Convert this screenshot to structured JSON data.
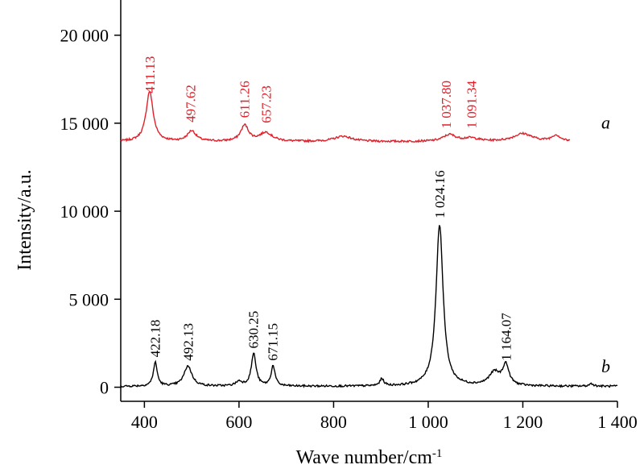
{
  "chart_data": {
    "type": "line",
    "title": "",
    "xlabel_main": "Wave number/cm",
    "xlabel_sup": "-1",
    "ylabel": "Intensity/a.u.",
    "xlim": [
      350,
      1400
    ],
    "ylim": [
      -800,
      22000
    ],
    "x_ticks": [
      {
        "value": 400,
        "label": "400"
      },
      {
        "value": 600,
        "label": "600"
      },
      {
        "value": 800,
        "label": "800"
      },
      {
        "value": 1000,
        "label": "1 000"
      },
      {
        "value": 1200,
        "label": "1 200"
      },
      {
        "value": 1400,
        "label": "1 400"
      }
    ],
    "y_ticks": [
      {
        "value": 0,
        "label": "0"
      },
      {
        "value": 5000,
        "label": "5 000"
      },
      {
        "value": 10000,
        "label": "10 000"
      },
      {
        "value": 15000,
        "label": "15 000"
      },
      {
        "value": 20000,
        "label": "20 000"
      }
    ],
    "series": [
      {
        "tag": "a",
        "color": "#e0202a",
        "x_range": [
          350,
          1300
        ],
        "baseline": 13950,
        "tag_value": 14700,
        "peaks": [
          {
            "x": 411,
            "height": 2850,
            "width": 9
          },
          {
            "x": 500,
            "height": 600,
            "width": 11
          },
          {
            "x": 612,
            "height": 900,
            "width": 10
          },
          {
            "x": 657,
            "height": 500,
            "width": 16
          },
          {
            "x": 820,
            "height": 300,
            "width": 22
          },
          {
            "x": 1045,
            "height": 380,
            "width": 16
          },
          {
            "x": 1090,
            "height": 180,
            "width": 20
          },
          {
            "x": 1200,
            "height": 450,
            "width": 24
          },
          {
            "x": 1270,
            "height": 350,
            "width": 11
          }
        ],
        "peak_labels": [
          {
            "x": 411.13,
            "text": "411.13",
            "y_data": 16700
          },
          {
            "x": 497.62,
            "text": "497.62",
            "y_data": 15050
          },
          {
            "x": 611.26,
            "text": "611.26",
            "y_data": 15300
          },
          {
            "x": 657.23,
            "text": "657.23",
            "y_data": 15000
          },
          {
            "x": 1037.8,
            "text": "1 037.80",
            "y_data": 14700
          },
          {
            "x": 1091.34,
            "text": "1 091.34",
            "y_data": 14700
          }
        ]
      },
      {
        "tag": "b",
        "color": "#000000",
        "x_range": [
          350,
          1400
        ],
        "baseline": 50,
        "tag_value": 850,
        "peaks": [
          {
            "x": 423,
            "height": 1350,
            "width": 5
          },
          {
            "x": 492,
            "height": 1150,
            "width": 10
          },
          {
            "x": 600,
            "height": 250,
            "width": 8
          },
          {
            "x": 631,
            "height": 1850,
            "width": 6
          },
          {
            "x": 672,
            "height": 1150,
            "width": 5
          },
          {
            "x": 902,
            "height": 400,
            "width": 5
          },
          {
            "x": 1024,
            "height": 9200,
            "width": 9
          },
          {
            "x": 1140,
            "height": 750,
            "width": 14
          },
          {
            "x": 1164,
            "height": 1150,
            "width": 8
          },
          {
            "x": 1345,
            "height": 150,
            "width": 5
          }
        ],
        "peak_labels": [
          {
            "x": 422.18,
            "text": "422.18",
            "y_data": 1700
          },
          {
            "x": 492.13,
            "text": "492.13",
            "y_data": 1500
          },
          {
            "x": 630.25,
            "text": "630.25",
            "y_data": 2200
          },
          {
            "x": 671.15,
            "text": "671.15",
            "y_data": 1500
          },
          {
            "x": 1024.16,
            "text": "1 024.16",
            "y_data": 9600
          },
          {
            "x": 1164.07,
            "text": "1 164.07",
            "y_data": 1500
          }
        ]
      }
    ]
  }
}
